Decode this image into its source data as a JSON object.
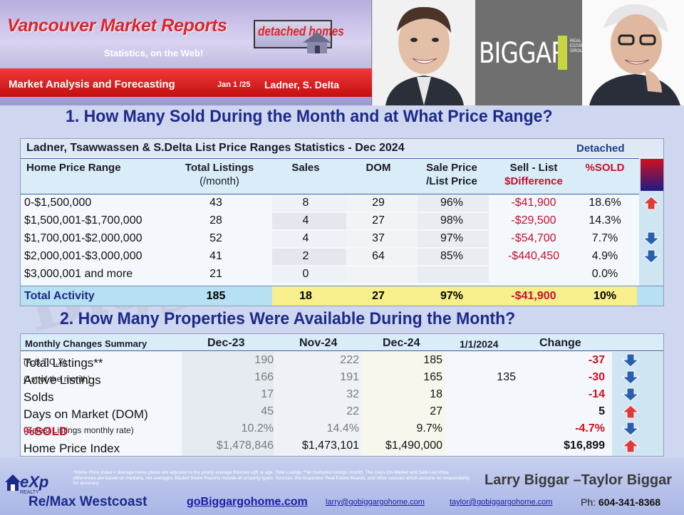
{
  "header": {
    "site_title": "Vancouver Market Reports",
    "badge": "detached homes",
    "subtitle": "Statistics, on the Web!",
    "bar_label": "Market Analysis and Forecasting",
    "date": "Jan 1 /25",
    "area": "Ladner, S. Delta",
    "logo": "BIGGAR",
    "logo_sub": "REAL ESTATE GROUP"
  },
  "watermark": "Biggar Group",
  "section1": {
    "heading": "1. How Many Sold During the Month and at What Price Range?",
    "table_title": "Ladner, Tsawwassen & S.Delta  List Price Ranges Statistics - Dec  2024",
    "property_type": "Detached",
    "columns": {
      "range": "Home Price Range",
      "listings": "Total  Listings",
      "listings_sub": "(/month)",
      "sales": "Sales",
      "dom": "DOM",
      "ratio": "Sale Price",
      "ratio_sub": "/List Price",
      "diff": "Sell - List",
      "diff_sub": "$Difference",
      "pct": "%SOLD"
    },
    "rows": [
      {
        "range": "0-$1,500,000",
        "listings": "43",
        "sales": "8",
        "dom": "29",
        "ratio": "96%",
        "diff": "-$41,900",
        "pct": "18.6%",
        "trend": "up"
      },
      {
        "range": "$1,500,001-$1,700,000",
        "listings": "28",
        "sales": "4",
        "dom": "27",
        "ratio": "98%",
        "diff": "-$29,500",
        "pct": "14.3%",
        "trend": ""
      },
      {
        "range": "$1,700,001-$2,000,000",
        "listings": "52",
        "sales": "4",
        "dom": "37",
        "ratio": "97%",
        "diff": "-$54,700",
        "pct": "7.7%",
        "trend": "down"
      },
      {
        "range": "$2,000,001-$3,000,000",
        "listings": "41",
        "sales": "2",
        "dom": "64",
        "ratio": "85%",
        "diff": "-$440,450",
        "pct": "4.9%",
        "trend": "down"
      },
      {
        "range": "$3,000,001 and more",
        "listings": "21",
        "sales": "0",
        "dom": "",
        "ratio": "",
        "diff": "",
        "pct": "0.0%",
        "trend": ""
      }
    ],
    "total": {
      "label": "Total Activity",
      "listings": "185",
      "sales": "18",
      "dom": "27",
      "ratio": "97%",
      "diff": "-$41,900",
      "pct": "10%"
    }
  },
  "section2": {
    "heading": "2. How Many Properties Were Available During the Month?",
    "columns": {
      "label": "Monthly Changes Summary",
      "dec23": "Dec-23",
      "nov24": "Nov-24",
      "dec24": "Dec-24",
      "jan": "1/1/2024",
      "change": "Change"
    },
    "rows": [
      {
        "label": "Total Listings**",
        "note": "(A,S,T,C,X)",
        "dec23": "190",
        "nov24": "222",
        "dec24": "185",
        "jan": "",
        "change": "-37",
        "change_color": "#d0101e",
        "trend": "down"
      },
      {
        "label": "Active Listings",
        "note": "(1st of the month)",
        "dec23": "166",
        "nov24": "191",
        "dec24": "165",
        "jan": "135",
        "change": "-30",
        "change_color": "#d0101e",
        "trend": "down"
      },
      {
        "label": "Solds",
        "note": "",
        "dec23": "17",
        "nov24": "32",
        "dec24": "18",
        "jan": "",
        "change": "-14",
        "change_color": "#d0101e",
        "trend": "down"
      },
      {
        "label": "Days on Market (DOM)",
        "note": "",
        "dec23": "45",
        "nov24": "22",
        "dec24": "27",
        "jan": "",
        "change": "5",
        "change_color": "#111111",
        "trend": "up"
      },
      {
        "label": "%SOLD",
        "note": "(Sales/ Listings monthly rate)",
        "dec23": "10.2%",
        "nov24": "14.4%",
        "dec24": "9.7%",
        "jan": "",
        "change": "-4.7%",
        "change_color": "#d0101e",
        "trend": "down"
      },
      {
        "label": "Home Price Index",
        "note": "",
        "dec23": "$1,478,846",
        "nov24": "$1,473,101",
        "dec24": "$1,490,000",
        "jan": "",
        "change": "$16,899",
        "change_color": "#111111",
        "trend": "up"
      }
    ]
  },
  "footer": {
    "exp": "eXp",
    "exp_sub": "REALTY",
    "disclaimer": "*Home Price Index = average home prices are adjusted to the yearly average finished sqft. & age.  Total Listings **all marketed listings /month. The Days-On-Market and Sale-List Price differences are based on medians, not averages. Market Share Reports include all property types. Sources:  the respective Real Estate Boards, and other sources which assume no responsibility for accuracy.",
    "names": "Larry Biggar –Taylor Biggar",
    "brokerage": "Re/Max Westcoast",
    "website": "goBiggargohome.com",
    "email1": "larry@gobiggargohome.com",
    "email2": "taylor@gobiggargohome.com",
    "phone_label": "Ph:",
    "phone": "604-341-8368"
  },
  "colors": {
    "up": "#e23a3a",
    "down": "#2a5fb0",
    "accent": "#1c2a8c",
    "red": "#c8102e"
  }
}
